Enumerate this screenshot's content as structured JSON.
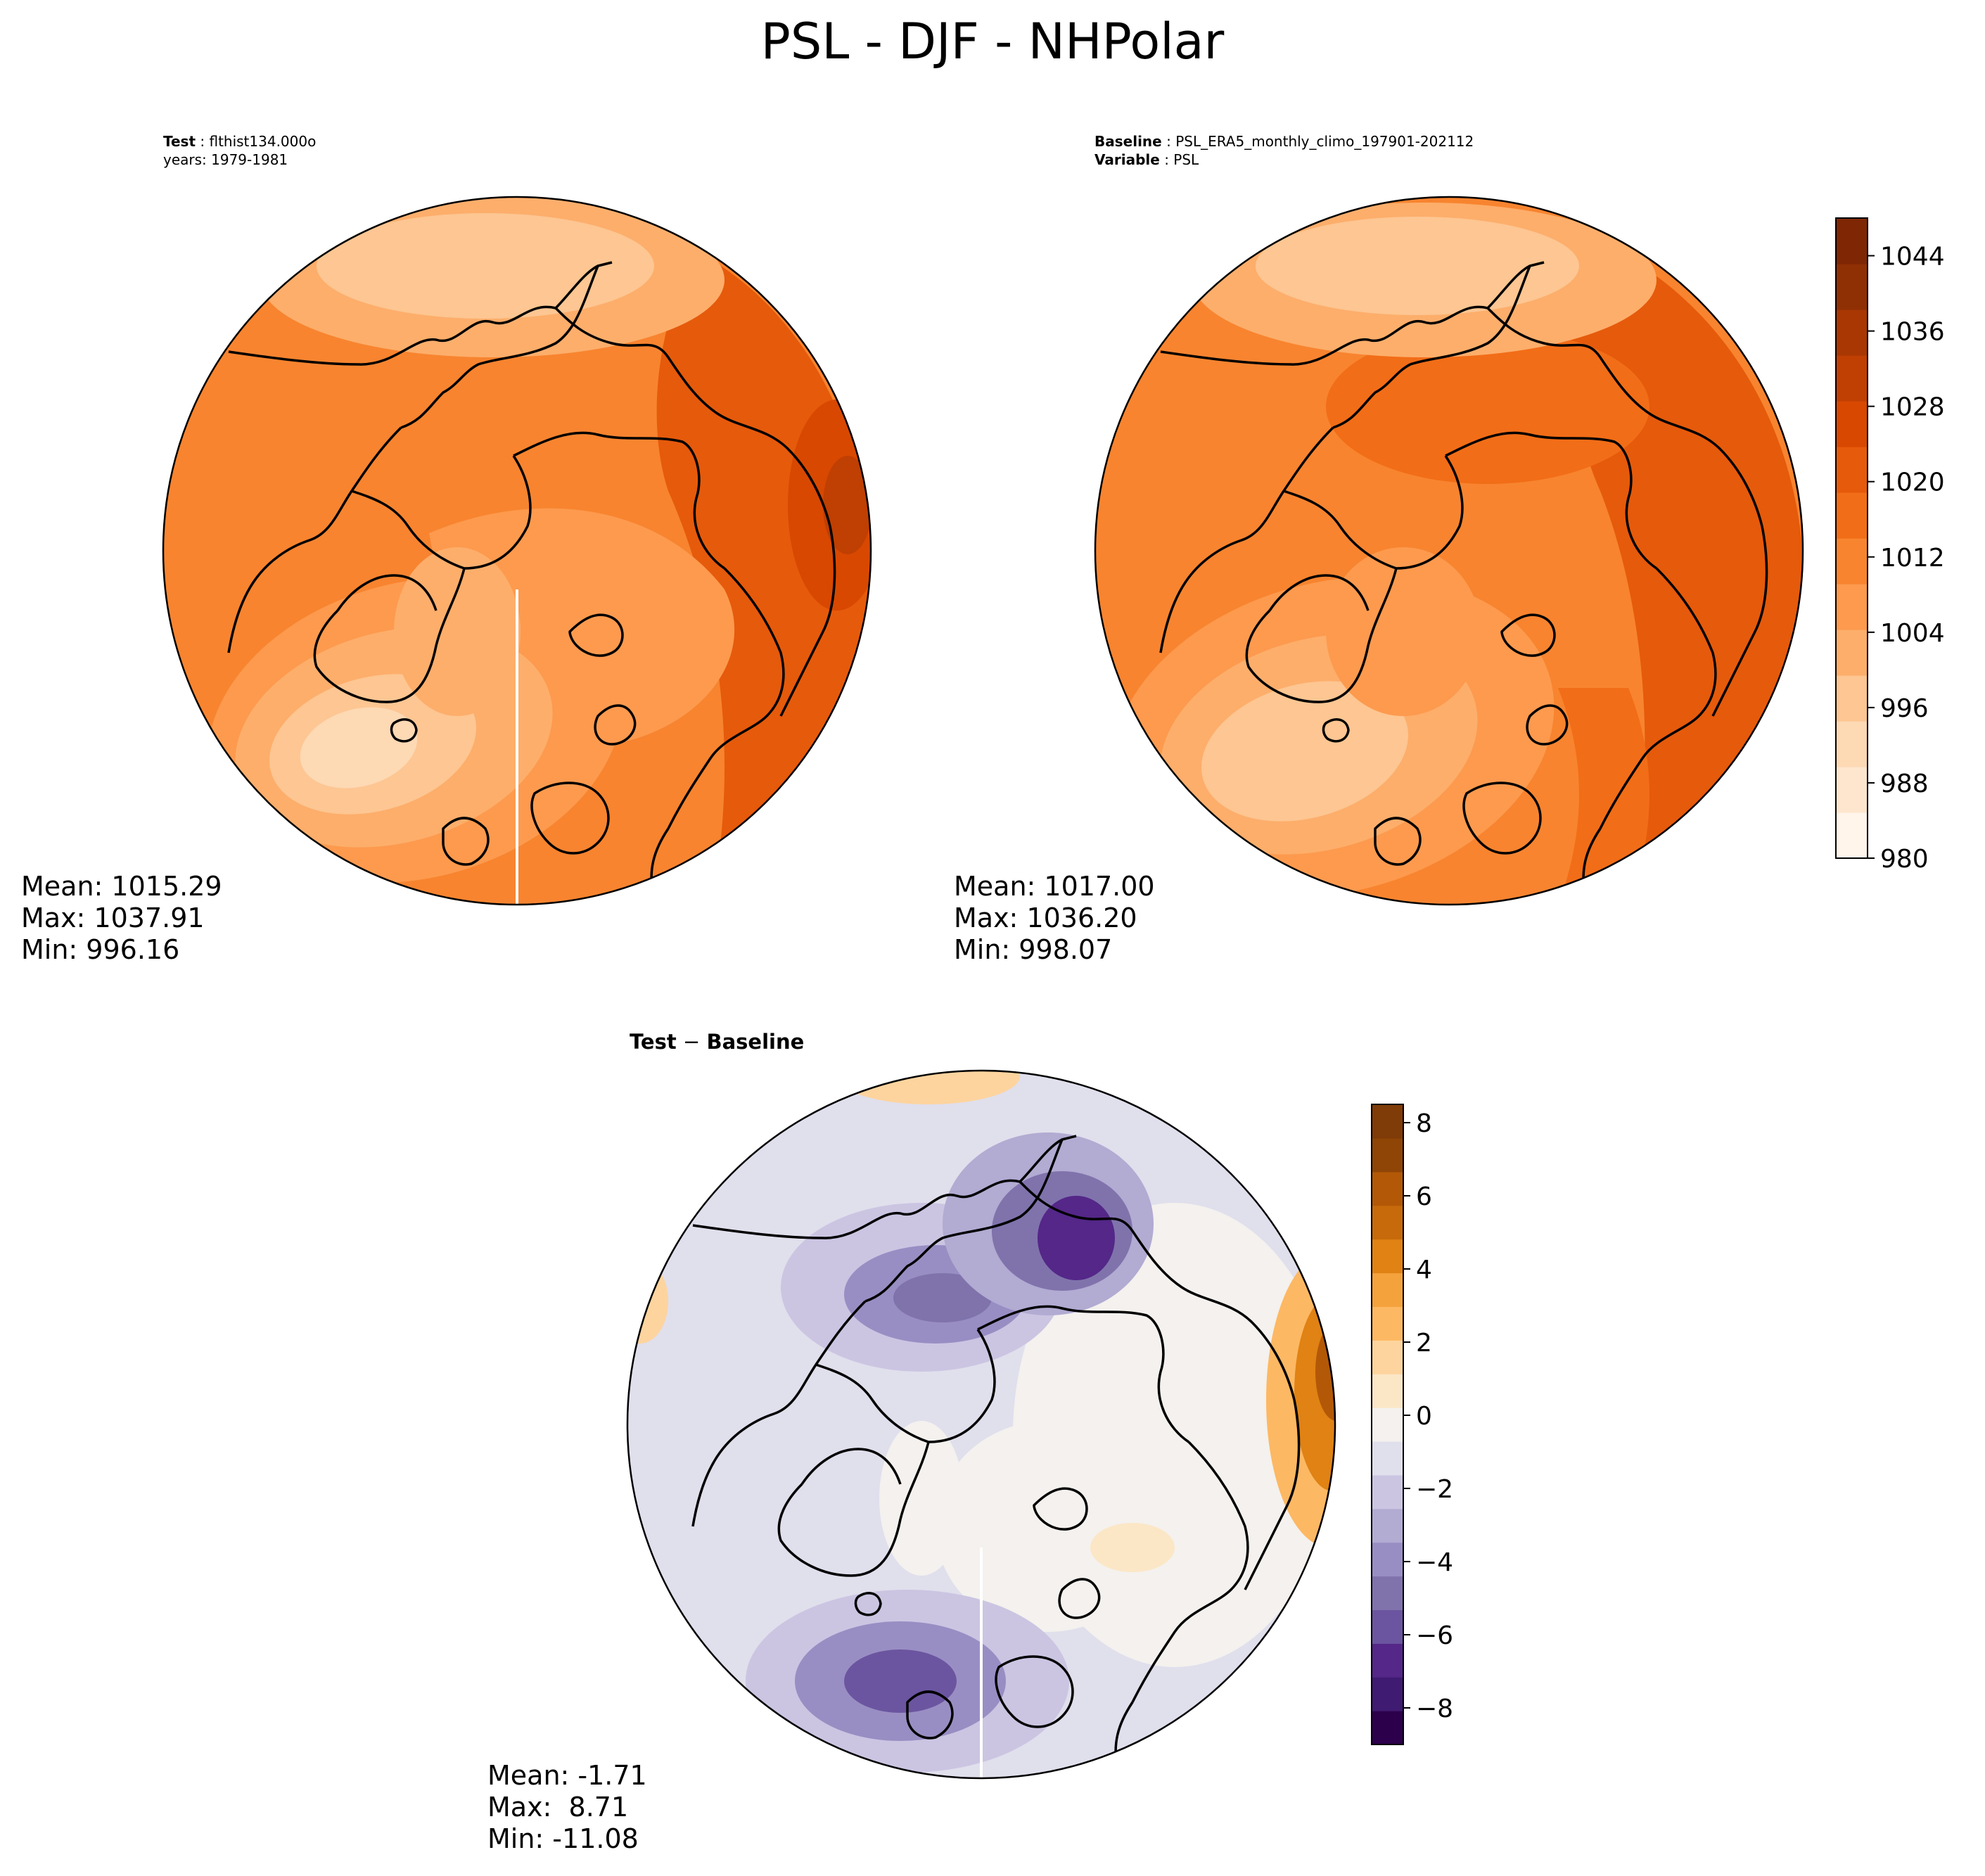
{
  "figure": {
    "title": "PSL - DJF - NHPolar"
  },
  "panels": {
    "test": {
      "header_key": "Test",
      "header_value": "flthist134.000o",
      "subheader": "years: 1979-1981",
      "stats": {
        "mean": "Mean: 1015.29",
        "max": "Max: 1037.91",
        "min": "Min: 996.16"
      }
    },
    "baseline": {
      "header_key": "Baseline",
      "header_value": "PSL_ERA5_monthly_climo_197901-202112",
      "header2_key": "Variable",
      "header2_value": "PSL",
      "stats": {
        "mean": "Mean: 1017.00",
        "max": "Max: 1036.20",
        "min": "Min: 998.07"
      }
    },
    "diff": {
      "header_key": "Test",
      "header_op": " − ",
      "header_value": "Baseline",
      "stats": {
        "mean": "Mean: -1.71",
        "max": "Max:  8.71",
        "min": "Min: -11.08"
      }
    }
  },
  "chart_data": [
    {
      "type": "heatmap",
      "name": "test",
      "title": "Test: flthist134.000o",
      "projection": "north polar stereographic",
      "variable": "PSL",
      "season": "DJF",
      "colormap": "Oranges",
      "levels": [
        980,
        984,
        988,
        992,
        996,
        1000,
        1004,
        1008,
        1012,
        1016,
        1020,
        1024,
        1028,
        1032,
        1036,
        1040,
        1044,
        1048
      ],
      "stats": {
        "mean": 1015.29,
        "max": 1037.91,
        "min": 996.16
      }
    },
    {
      "type": "heatmap",
      "name": "baseline",
      "title": "Baseline: PSL_ERA5_monthly_climo_197901-202112",
      "projection": "north polar stereographic",
      "variable": "PSL",
      "season": "DJF",
      "colormap": "Oranges",
      "levels": [
        980,
        984,
        988,
        992,
        996,
        1000,
        1004,
        1008,
        1012,
        1016,
        1020,
        1024,
        1028,
        1032,
        1036,
        1040,
        1044,
        1048
      ],
      "stats": {
        "mean": 1017.0,
        "max": 1036.2,
        "min": 998.07
      }
    },
    {
      "type": "heatmap",
      "name": "difference",
      "title": "Test − Baseline",
      "projection": "north polar stereographic",
      "variable": "PSL",
      "season": "DJF",
      "colormap": "PuOr_r",
      "levels": [
        -9,
        -8,
        -7,
        -6,
        -5,
        -4,
        -3,
        -2,
        -1,
        0,
        1,
        2,
        3,
        4,
        5,
        6,
        7,
        8,
        8.5
      ],
      "stats": {
        "mean": -1.71,
        "max": 8.71,
        "min": -11.08
      }
    }
  ],
  "colorbars": {
    "abs": {
      "ticks": [
        "980",
        "988",
        "996",
        "1004",
        "1012",
        "1020",
        "1028",
        "1036",
        "1044"
      ],
      "tick_values": [
        980,
        988,
        996,
        1004,
        1012,
        1020,
        1028,
        1036,
        1044
      ],
      "range": [
        980,
        1048
      ],
      "colors": [
        "#fff5eb",
        "#fee6ce",
        "#fdd9b4",
        "#fdc692",
        "#fdae6b",
        "#fd9a4e",
        "#f8842f",
        "#f26d17",
        "#e65a0b",
        "#d84801",
        "#c03f02",
        "#a93703",
        "#8f3004",
        "#7f2704"
      ]
    },
    "diff": {
      "ticks": [
        "8",
        "6",
        "4",
        "2",
        "0",
        "−2",
        "−4",
        "−6",
        "−8"
      ],
      "tick_values": [
        8,
        6,
        4,
        2,
        0,
        -2,
        -4,
        -6,
        -8
      ],
      "range": [
        -9,
        8.5
      ],
      "colors": [
        "#2d004b",
        "#3f1b71",
        "#542788",
        "#6b55a0",
        "#8073ac",
        "#998ec3",
        "#b2abd2",
        "#cbc5e2",
        "#e0dfec",
        "#f4f1ee",
        "#fbe7c6",
        "#fdd49e",
        "#fdb863",
        "#f4a23c",
        "#e08214",
        "#c66a0b",
        "#b35806",
        "#8e4506",
        "#7f3b08"
      ]
    }
  }
}
